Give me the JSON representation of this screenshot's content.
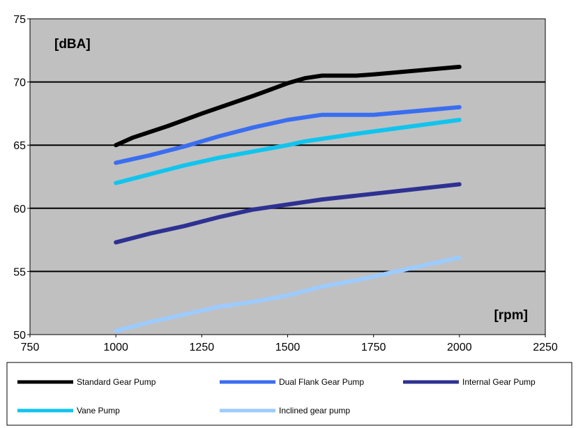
{
  "chart_data": {
    "type": "line",
    "ylabel": "[dBA]",
    "xlabel": "[rpm]",
    "xlim": [
      750,
      2250
    ],
    "ylim": [
      50,
      75
    ],
    "xticks": [
      "750",
      "1000",
      "1250",
      "1500",
      "1750",
      "2000",
      "2250"
    ],
    "yticks": [
      "50",
      "55",
      "60",
      "65",
      "70",
      "75"
    ],
    "grid": "horizontal",
    "plot_background": "#c0c0c0",
    "legend_position": "bottom",
    "series": [
      {
        "name": "Standard Gear Pump",
        "color": "#000000",
        "x": [
          1000,
          1050,
          1150,
          1250,
          1400,
          1450,
          1500,
          1550,
          1600,
          1700,
          1750,
          2000
        ],
        "y": [
          65.0,
          65.6,
          66.5,
          67.5,
          68.9,
          69.4,
          69.9,
          70.3,
          70.5,
          70.5,
          70.6,
          71.2
        ]
      },
      {
        "name": "Dual Flank Gear Pump",
        "color": "#3a6ef0",
        "x": [
          1000,
          1100,
          1200,
          1300,
          1400,
          1500,
          1550,
          1600,
          1650,
          1750,
          2000
        ],
        "y": [
          63.6,
          64.2,
          64.9,
          65.7,
          66.4,
          67.0,
          67.2,
          67.4,
          67.4,
          67.4,
          68.0
        ]
      },
      {
        "name": "Internal Gear Pump",
        "color": "#2e3192",
        "x": [
          1000,
          1100,
          1200,
          1300,
          1400,
          1500,
          1600,
          1700,
          2000
        ],
        "y": [
          57.3,
          58.0,
          58.6,
          59.3,
          59.9,
          60.3,
          60.7,
          61.0,
          61.9
        ]
      },
      {
        "name": "Vane Pump",
        "color": "#11c4ee",
        "x": [
          1000,
          1100,
          1200,
          1300,
          1400,
          1500,
          1550,
          1600,
          1700,
          2000
        ],
        "y": [
          62.0,
          62.7,
          63.4,
          64.0,
          64.5,
          65.0,
          65.3,
          65.5,
          65.9,
          67.0
        ]
      },
      {
        "name": "Inclined gear pump",
        "color": "#9ccbff",
        "x": [
          1000,
          1100,
          1200,
          1300,
          1400,
          1500,
          1600,
          1700,
          1800,
          2000
        ],
        "y": [
          50.3,
          51.0,
          51.6,
          52.2,
          52.6,
          53.1,
          53.8,
          54.3,
          54.9,
          56.1
        ]
      }
    ]
  }
}
